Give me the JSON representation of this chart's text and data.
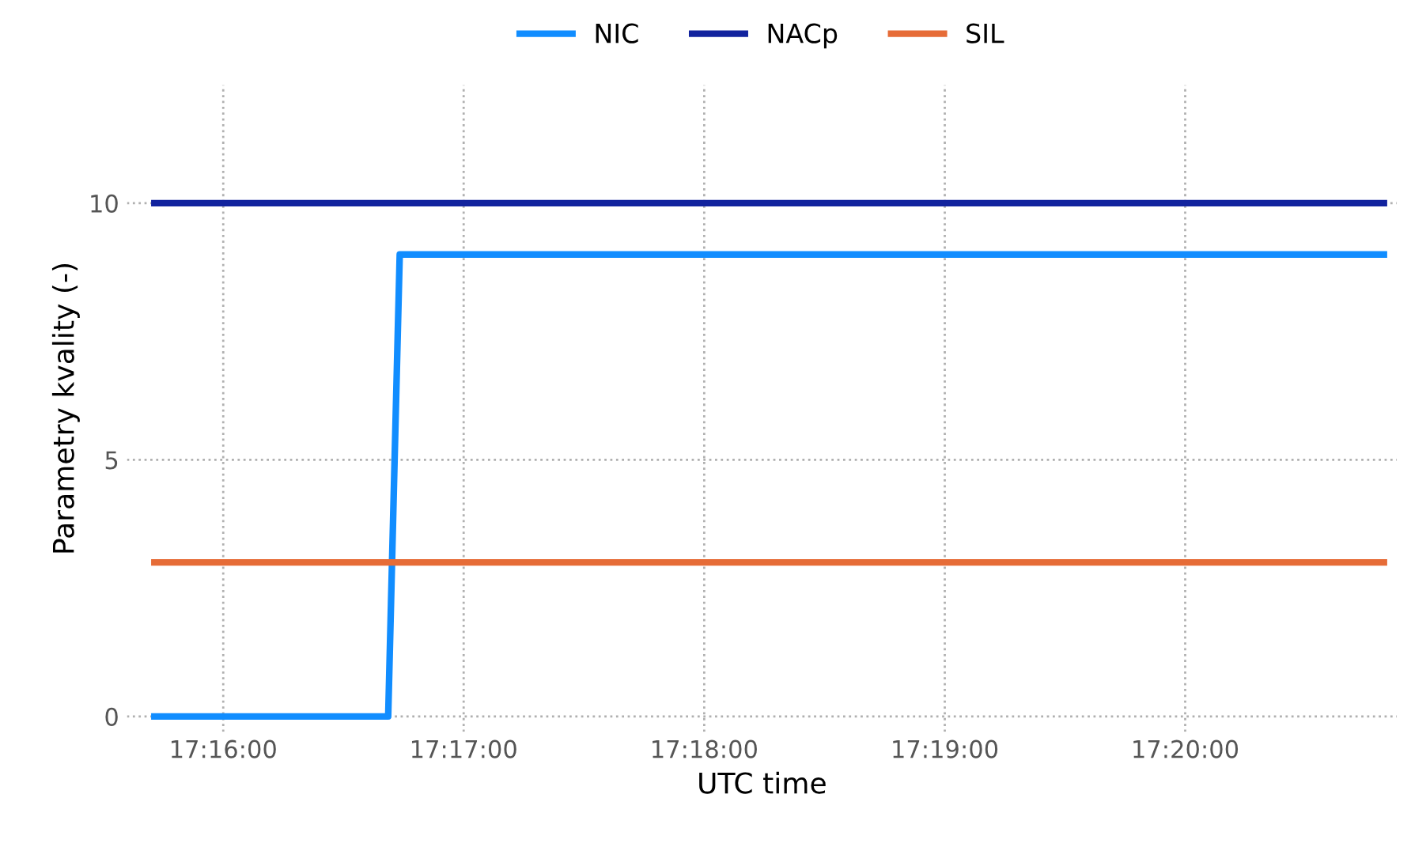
{
  "chart_data": {
    "type": "line",
    "xlabel": "UTC time",
    "ylabel": "Parametry kvality (-)",
    "series": [
      {
        "name": "NIC",
        "color": "#118dff",
        "x": [
          17.2619,
          17.2781,
          17.2789,
          17.3471
        ],
        "values": [
          0,
          0,
          9,
          9
        ]
      },
      {
        "name": "NACp",
        "color": "#12239e",
        "x": [
          17.2619,
          17.3471
        ],
        "values": [
          10,
          10
        ]
      },
      {
        "name": "SIL",
        "color": "#e66c37",
        "x": [
          17.2619,
          17.3471
        ],
        "values": [
          3,
          3
        ]
      }
    ],
    "xlim": [
      17.26,
      17.348
    ],
    "ylim": [
      -0.3,
      12.3
    ],
    "xticks": [
      {
        "value": 17.26667,
        "label": "17:16:00"
      },
      {
        "value": 17.28333,
        "label": "17:17:00"
      },
      {
        "value": 17.3,
        "label": "17:18:00"
      },
      {
        "value": 17.31667,
        "label": "17:19:00"
      },
      {
        "value": 17.33333,
        "label": "17:20:00"
      }
    ],
    "yticks": [
      0,
      5,
      10
    ],
    "grid": true,
    "legend": "top",
    "marker": "none",
    "line_style": "solid"
  }
}
